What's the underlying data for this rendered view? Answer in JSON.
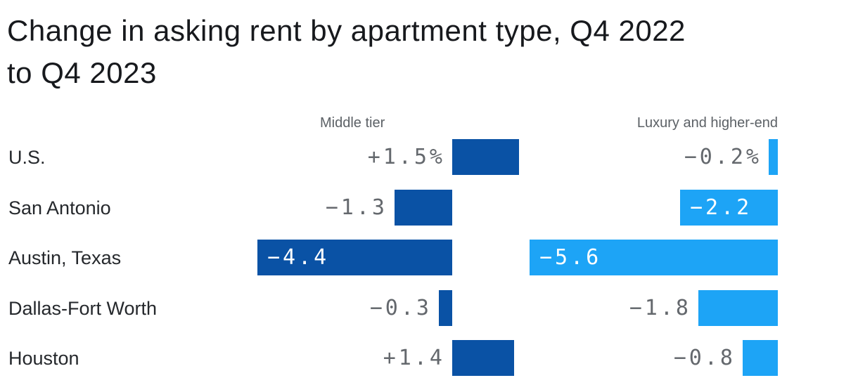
{
  "title": "Change in asking rent by apartment type, Q4 2022 to Q4 2023",
  "title_lines": [
    "Change in asking rent by apartment type, Q4 2022",
    "to Q4 2023"
  ],
  "colors": {
    "middle_tier_bar": "#0a52a5",
    "luxury_bar": "#1da4f6",
    "value_label_gray": "#64686d",
    "value_label_inside": "#ffffff",
    "header_gray": "#5c6166",
    "category_text": "#25282c",
    "title_text": "#17191d",
    "background": "#ffffff"
  },
  "chart_data": {
    "type": "bar",
    "orientation": "horizontal",
    "title": "Change in asking rent by apartment type, Q4 2022 to Q4 2023",
    "unit": "percent",
    "xlim": [
      -5.6,
      1.5
    ],
    "grid": false,
    "legend_position": "column headers above each bar group",
    "categories": [
      "U.S.",
      "San Antonio",
      "Austin, Texas",
      "Dallas-Fort Worth",
      "Houston"
    ],
    "series": [
      {
        "name": "Middle tier",
        "color": "#0a52a5",
        "values": [
          1.5,
          -1.3,
          -4.4,
          -0.3,
          1.4
        ],
        "value_labels": [
          "+1.5%",
          "−1.3",
          "−4.4",
          "−0.3",
          "+1.4"
        ]
      },
      {
        "name": "Luxury and higher-end",
        "color": "#1da4f6",
        "values": [
          -0.2,
          -2.2,
          -5.6,
          -1.8,
          -0.8
        ],
        "value_labels": [
          "−0.2%",
          "−2.2",
          "−5.6",
          "−1.8",
          "−0.8"
        ]
      }
    ]
  }
}
